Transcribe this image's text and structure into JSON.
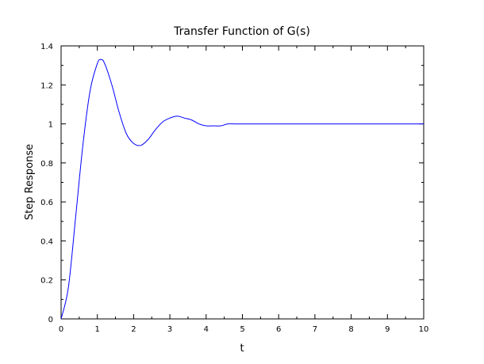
{
  "chart_data": {
    "type": "line",
    "title": "Transfer Function of G(s)",
    "xlabel": "t",
    "ylabel": "Step Response",
    "xlim": [
      0,
      10
    ],
    "ylim": [
      0,
      1.4
    ],
    "x_ticks": [
      0,
      1,
      2,
      3,
      4,
      5,
      6,
      7,
      8,
      9,
      10
    ],
    "x_tick_labels": [
      "0",
      "1",
      "2",
      "3",
      "4",
      "5",
      "6",
      "7",
      "8",
      "9",
      "10"
    ],
    "y_ticks": [
      0,
      0.2,
      0.4,
      0.6,
      0.8,
      1,
      1.2,
      1.4
    ],
    "y_tick_labels": [
      "0",
      "0.2",
      "0.4",
      "0.6",
      "0.8",
      "1",
      "1.2",
      "1.4"
    ],
    "grid": false,
    "series": [
      {
        "color": "#0000ff",
        "x": [
          0,
          0.2,
          0.4,
          0.6,
          0.8,
          1.0,
          1.1,
          1.2,
          1.4,
          1.6,
          1.8,
          2.0,
          2.2,
          2.4,
          2.6,
          2.8,
          3.0,
          3.2,
          3.4,
          3.6,
          3.8,
          4.0,
          4.2,
          4.4,
          4.6,
          4.8,
          5.0,
          5.2,
          5.6,
          6.0,
          6.5,
          7.0,
          7.5,
          8.0,
          8.5,
          9.0,
          9.5,
          10.0
        ],
        "y": [
          0,
          0.16,
          0.52,
          0.89,
          1.17,
          1.31,
          1.33,
          1.31,
          1.2,
          1.06,
          0.95,
          0.9,
          0.89,
          0.92,
          0.97,
          1.01,
          1.03,
          1.04,
          1.03,
          1.02,
          1.0,
          0.99,
          0.99,
          0.99,
          1.0,
          1.0,
          1.0,
          1.0,
          1.0,
          1.0,
          1.0,
          1.0,
          1.0,
          1.0,
          1.0,
          1.0,
          1.0,
          1.0
        ]
      }
    ]
  }
}
